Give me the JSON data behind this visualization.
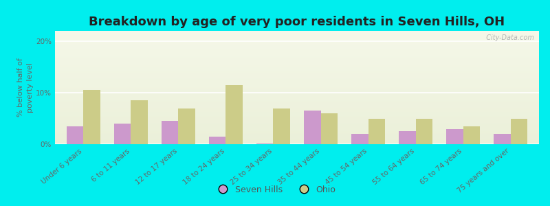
{
  "title": "Breakdown by age of very poor residents in Seven Hills, OH",
  "ylabel": "% below half of\npoverty level",
  "categories": [
    "Under 6 years",
    "6 to 11 years",
    "12 to 17 years",
    "18 to 24 years",
    "25 to 34 years",
    "35 to 44 years",
    "45 to 54 years",
    "55 to 64 years",
    "65 to 74 years",
    "75 years and over"
  ],
  "seven_hills": [
    3.5,
    4.0,
    4.5,
    1.5,
    0.2,
    6.5,
    2.0,
    2.5,
    3.0,
    2.0
  ],
  "ohio": [
    10.5,
    8.5,
    7.0,
    11.5,
    7.0,
    6.0,
    5.0,
    5.0,
    3.5,
    5.0
  ],
  "seven_hills_color": "#cc99cc",
  "ohio_color": "#cccc88",
  "background_outer": "#00eeee",
  "ylim": [
    0,
    22
  ],
  "yticks": [
    0,
    10,
    20
  ],
  "ytick_labels": [
    "0%",
    "10%",
    "20%"
  ],
  "bar_width": 0.35,
  "title_fontsize": 13,
  "axis_label_fontsize": 8,
  "tick_fontsize": 7.5,
  "legend_labels": [
    "Seven Hills",
    "Ohio"
  ],
  "watermark": "  City-Data.com"
}
